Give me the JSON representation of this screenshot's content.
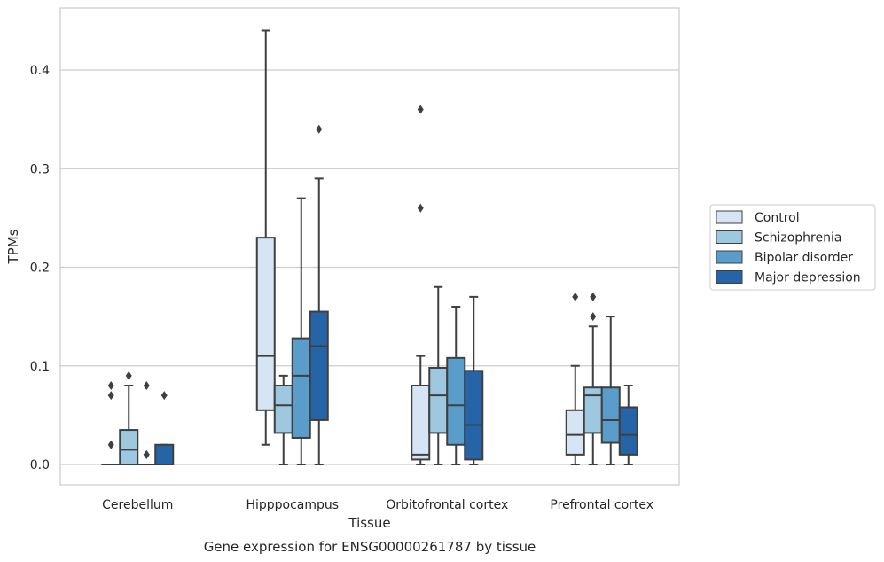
{
  "caption": "Gene expression for ENSG00000261787 by tissue",
  "chart_data": {
    "type": "box",
    "xlabel": "Tissue",
    "ylabel": "TPMs",
    "ylim": [
      -0.021,
      0.464
    ],
    "yticks": [
      0.0,
      0.1,
      0.2,
      0.3,
      0.4
    ],
    "ytick_labels": [
      "0.0",
      "0.1",
      "0.2",
      "0.3",
      "0.4"
    ],
    "grid": "horizontal",
    "legend_position": "right",
    "categories": [
      "Cerebellum",
      "Hipppocampus",
      "Orbitofrontal cortex",
      "Prefrontal cortex"
    ],
    "series": [
      {
        "name": "Control",
        "color": "#d6e5f4",
        "boxes": [
          {
            "min": 0.0,
            "q1": 0.0,
            "median": 0.0,
            "q3": 0.0,
            "max": 0.0,
            "outliers": [
              0.08,
              0.07,
              0.02
            ]
          },
          {
            "min": 0.02,
            "q1": 0.055,
            "median": 0.11,
            "q3": 0.23,
            "max": 0.44,
            "outliers": []
          },
          {
            "min": 0.0,
            "q1": 0.005,
            "median": 0.01,
            "q3": 0.08,
            "max": 0.11,
            "outliers": [
              0.36,
              0.26
            ]
          },
          {
            "min": 0.0,
            "q1": 0.01,
            "median": 0.03,
            "q3": 0.055,
            "max": 0.1,
            "outliers": [
              0.17
            ]
          }
        ]
      },
      {
        "name": "Schizophrenia",
        "color": "#9dc8e0",
        "boxes": [
          {
            "min": 0.0,
            "q1": 0.0,
            "median": 0.015,
            "q3": 0.035,
            "max": 0.08,
            "outliers": [
              0.09
            ]
          },
          {
            "min": 0.0,
            "q1": 0.032,
            "median": 0.06,
            "q3": 0.08,
            "max": 0.09,
            "outliers": []
          },
          {
            "min": 0.0,
            "q1": 0.032,
            "median": 0.07,
            "q3": 0.098,
            "max": 0.18,
            "outliers": []
          },
          {
            "min": 0.0,
            "q1": 0.032,
            "median": 0.07,
            "q3": 0.078,
            "max": 0.14,
            "outliers": [
              0.17,
              0.15
            ]
          }
        ]
      },
      {
        "name": "Bipolar disorder",
        "color": "#5b9dca",
        "boxes": [
          {
            "min": 0.0,
            "q1": 0.0,
            "median": 0.0,
            "q3": 0.0,
            "max": 0.0,
            "outliers": [
              0.08,
              0.01,
              0.01
            ]
          },
          {
            "min": 0.0,
            "q1": 0.027,
            "median": 0.09,
            "q3": 0.128,
            "max": 0.27,
            "outliers": []
          },
          {
            "min": 0.0,
            "q1": 0.02,
            "median": 0.06,
            "q3": 0.108,
            "max": 0.16,
            "outliers": []
          },
          {
            "min": 0.0,
            "q1": 0.022,
            "median": 0.045,
            "q3": 0.078,
            "max": 0.15,
            "outliers": []
          }
        ]
      },
      {
        "name": "Major depression",
        "color": "#2565a7",
        "boxes": [
          {
            "min": 0.0,
            "q1": 0.0,
            "median": 0.0,
            "q3": 0.02,
            "max": 0.02,
            "outliers": [
              0.07
            ]
          },
          {
            "min": 0.0,
            "q1": 0.045,
            "median": 0.12,
            "q3": 0.155,
            "max": 0.29,
            "outliers": [
              0.34
            ]
          },
          {
            "min": 0.0,
            "q1": 0.005,
            "median": 0.04,
            "q3": 0.095,
            "max": 0.17,
            "outliers": []
          },
          {
            "min": 0.0,
            "q1": 0.01,
            "median": 0.03,
            "q3": 0.058,
            "max": 0.08,
            "outliers": []
          }
        ]
      }
    ]
  }
}
